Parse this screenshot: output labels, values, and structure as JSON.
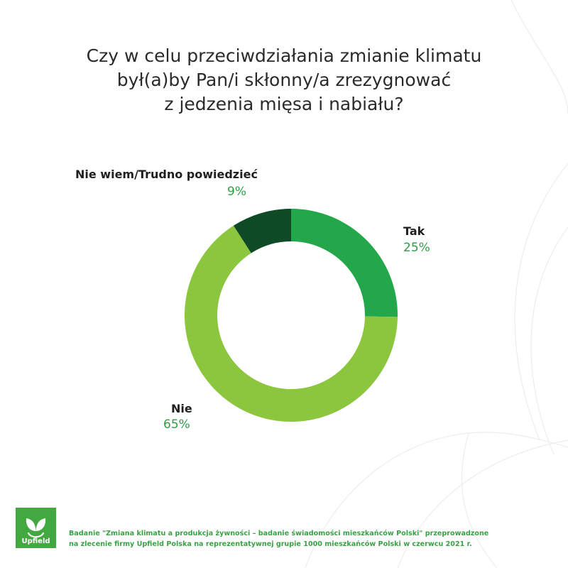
{
  "title": {
    "line1": "Czy w celu przeciwdziałania zmianie klimatu",
    "line2": "był(a)by Pan/i skłonny/a zrezygnować",
    "line3": "z jedzenia mięsa i nabiału?"
  },
  "chart_data": {
    "type": "pie",
    "donut": true,
    "title": "Czy w celu przeciwdziałania zmianie klimatu był(a)by Pan/i skłonny/a zrezygnować z jedzenia mięsa i nabiału?",
    "categories": [
      "Tak",
      "Nie",
      "Nie wiem/Trudno powiedzieć"
    ],
    "values": [
      25,
      65,
      9
    ],
    "value_labels": [
      "25%",
      "65%",
      "9%"
    ],
    "unit": "%",
    "colors": [
      "#24a64a",
      "#8cc63e",
      "#0d4a25"
    ],
    "legend": "none"
  },
  "labels": {
    "tak": {
      "name": "Tak",
      "pct": "25%"
    },
    "nie": {
      "name": "Nie",
      "pct": "65%"
    },
    "niewiem": {
      "name": "Nie wiem/Trudno powiedzieć",
      "pct": "9%"
    }
  },
  "brand": {
    "name": "Upfield",
    "logo_icon": "upfield-leaf-icon",
    "color": "#43a83f"
  },
  "footnote": {
    "line1": "Badanie \"Zmiana klimatu a produkcja żywności – badanie świadomości mieszkańców Polski\" przeprowadzone",
    "line2": "na zlecenie firmy Upfield Polska na reprezentatywnej grupie 1000 mieszkańców Polski w czerwcu 2021 r."
  },
  "colors": {
    "pct_text": "#2e9d45",
    "footnote_text": "#3aa046"
  }
}
